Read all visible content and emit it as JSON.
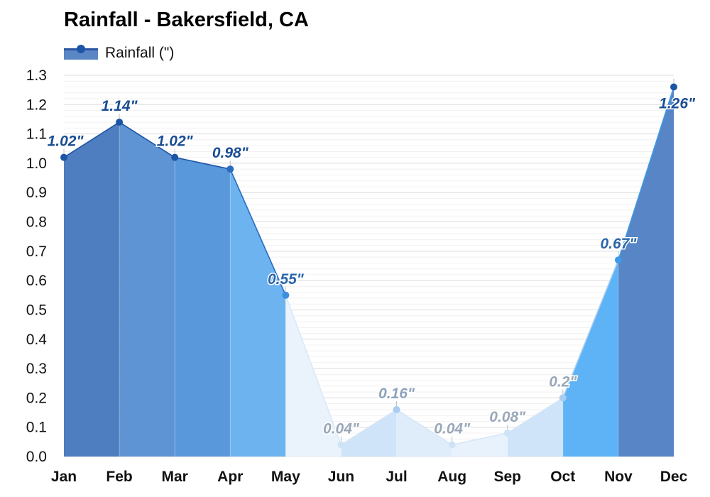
{
  "title": "Rainfall - Bakersfield, CA",
  "legend": {
    "label": "Rainfall (\")"
  },
  "colors": {
    "dark_blue": "#1d55a6",
    "mid_blue": "#4a90e2",
    "light_blue": "#6fb6f2",
    "pale_blue": "#cfe3f7",
    "faint_blue": "#e6f1fb",
    "label_dark": "#1a4d94",
    "label_grey": "#9aa7b8"
  },
  "chart_data": {
    "type": "area",
    "title": "Rainfall - Bakersfield, CA",
    "categories": [
      "Jan",
      "Feb",
      "Mar",
      "Apr",
      "May",
      "Jun",
      "Jul",
      "Aug",
      "Sep",
      "Oct",
      "Nov",
      "Dec"
    ],
    "series": [
      {
        "name": "Rainfall (\")",
        "values": [
          1.02,
          1.14,
          1.02,
          0.98,
          0.55,
          0.04,
          0.16,
          0.04,
          0.08,
          0.2,
          0.67,
          1.26
        ]
      }
    ],
    "data_labels": [
      "1.02\"",
      "1.14\"",
      "1.02\"",
      "0.98\"",
      "0.55\"",
      "0.04\"",
      "0.16\"",
      "0.04\"",
      "0.08\"",
      "0.2\"",
      "0.67\"",
      "1.26\""
    ],
    "segment_colors": [
      "#4f7ec0",
      "#5f94d4",
      "#5a98dc",
      "#6cb3f0",
      "#eaf3fc",
      "#cfe4f9",
      "#dfedfb",
      "#e8f2fc",
      "#cfe4f9",
      "#5db3f5",
      "#5785c6"
    ],
    "label_colors": [
      "#1a4d94",
      "#1a4d94",
      "#1a4d94",
      "#1a4d94",
      "#2a66aa",
      "#9aa7b8",
      "#8ea3bb",
      "#9aa7b8",
      "#9aa7b8",
      "#9aa7b8",
      "#2a66aa",
      "#1a4d94"
    ],
    "point_colors": [
      "#1d55a6",
      "#1d55a6",
      "#1d55a6",
      "#2a6cc0",
      "#3d8fe0",
      "#cfe3f7",
      "#a9cdf0",
      "#cfe3f7",
      "#cfe3f7",
      "#a9cdf0",
      "#3d9be8",
      "#1d55a6"
    ],
    "yticks": [
      "0.0",
      "0.1",
      "0.2",
      "0.3",
      "0.4",
      "0.5",
      "0.6",
      "0.7",
      "0.8",
      "0.9",
      "1.0",
      "1.1",
      "1.2",
      "1.3"
    ],
    "ylim": [
      0,
      1.3
    ],
    "grid": true,
    "legend_position": "top-left"
  }
}
